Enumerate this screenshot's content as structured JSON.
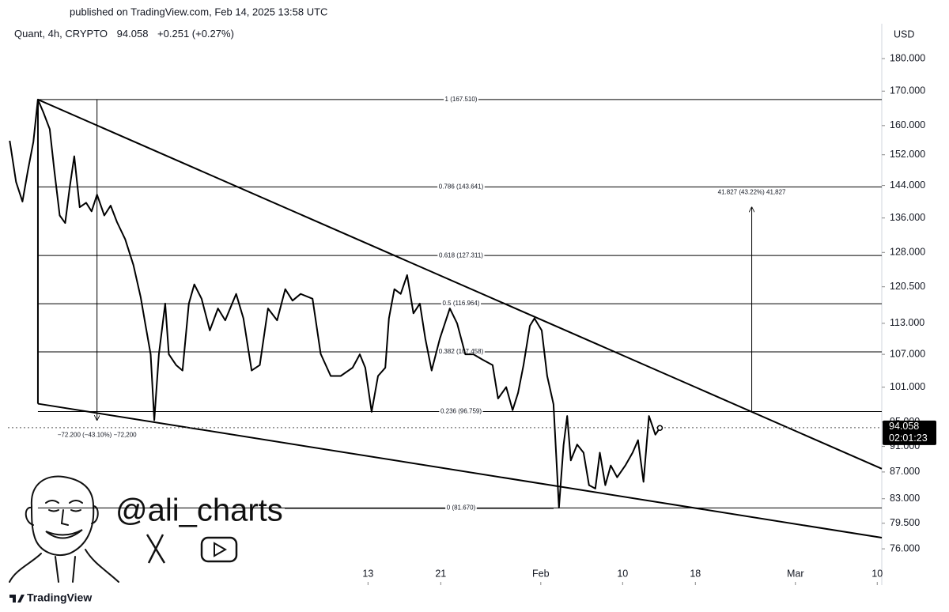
{
  "header": {
    "published": "published on TradingView.com, Feb 14, 2025 13:58 UTC"
  },
  "chart_data": {
    "type": "line",
    "symbol": "Quant, 4h, CRYPTO",
    "last_price": 94.058,
    "change": "+0.251 (+0.27%)",
    "countdown": "02:01:23",
    "currency": "USD",
    "log_scale": true,
    "x": [
      -26.4,
      -25.7,
      -25.0,
      -24.4,
      -23.8,
      -23.3,
      -22.7,
      -22.0,
      -21.5,
      -20.9,
      -20.3,
      -19.8,
      -19.3,
      -18.7,
      -18.0,
      -17.4,
      -16.8,
      -16.0,
      -15.3,
      -14.6,
      -13.7,
      -12.8,
      -12.0,
      -11.5,
      -10.9,
      -10.5,
      -10.0,
      -9.3,
      -8.9,
      -8.1,
      -7.4,
      -6.7,
      -6.1,
      -5.3,
      -4.4,
      -3.5,
      -2.7,
      -1.5,
      -0.7,
      0.2,
      1.1,
      2.0,
      3.0,
      3.9,
      4.7,
      5.6,
      6.9,
      7.8,
      8.9,
      10.0,
      11.3,
      12.1,
      12.7,
      13.4,
      14.1,
      14.9,
      15.3,
      15.9,
      16.6,
      17.3,
      18.0,
      18.7,
      19.3,
      20.0,
      20.9,
      22.0,
      22.8,
      23.7,
      24.6,
      25.6,
      26.7,
      27.3,
      28.2,
      28.9,
      29.5,
      30.1,
      30.8,
      31.3,
      32.1,
      32.7,
      33.4,
      34.0,
      34.5,
      34.9,
      35.3,
      36.0,
      36.7,
      37.3,
      38.0,
      38.5,
      39.1,
      39.7,
      40.4,
      41.3,
      42.1,
      42.7,
      43.3,
      43.9,
      44.6,
      45.1
    ],
    "color": "#000000",
    "values": [
      155.8,
      144.9,
      140,
      147.9,
      155.5,
      167.5,
      163.8,
      159,
      148,
      136.6,
      134.8,
      143.6,
      151.6,
      138.6,
      139.7,
      137.6,
      141.7,
      136.6,
      139,
      135,
      131,
      125.2,
      118.3,
      113,
      107,
      95.3,
      107,
      117,
      107,
      105,
      104,
      117,
      121,
      118,
      111.6,
      116,
      113.6,
      119,
      114,
      104,
      105,
      116,
      113.6,
      120,
      117.6,
      119,
      118,
      107.1,
      103,
      103,
      104.5,
      107,
      104.5,
      96.7,
      103,
      104.5,
      114,
      120,
      119,
      123,
      115,
      117,
      110,
      104,
      110,
      116,
      113,
      107,
      107,
      106,
      105,
      99,
      101,
      97,
      100,
      105,
      112.5,
      114,
      111.6,
      103,
      98,
      81.7,
      91.2,
      96,
      88.8,
      91.3,
      90,
      85,
      84.5,
      90,
      85,
      88,
      86.2,
      88,
      90,
      92,
      85.5,
      96,
      92.9,
      94
    ],
    "xlim": [
      -26.6,
      69.5
    ],
    "ylim": [
      71.3,
      191.4
    ],
    "xticks": [
      13,
      21,
      {
        "value": 32,
        "label": "Feb"
      },
      {
        "value": 41,
        "label": "10"
      },
      {
        "value": 49,
        "label": "18"
      },
      {
        "value": 60,
        "label": "Mar"
      },
      {
        "value": 69,
        "label": "10"
      }
    ],
    "yticks": [
      {
        "value": 76,
        "label": "76.000"
      },
      {
        "value": 79.5,
        "label": "79.500"
      },
      {
        "value": 83,
        "label": "83.000"
      },
      {
        "value": 87,
        "label": "87.000"
      },
      {
        "value": 91,
        "label": "91.000"
      },
      {
        "value": 95,
        "label": "95.000"
      },
      {
        "value": 101,
        "label": "101.000"
      },
      {
        "value": 107,
        "label": "107.000"
      },
      {
        "value": 113,
        "label": "113.000"
      },
      {
        "value": 120.5,
        "label": "120.500"
      },
      {
        "value": 128,
        "label": "128.000"
      },
      {
        "value": 136,
        "label": "136.000"
      },
      {
        "value": 144,
        "label": "144.000"
      },
      {
        "value": 152,
        "label": "152.000"
      },
      {
        "value": 160,
        "label": "160.000"
      },
      {
        "value": 170,
        "label": "170.000"
      },
      {
        "value": 180,
        "label": "180.000"
      }
    ],
    "fib_levels": [
      {
        "label": "1 (167.510)",
        "value": 167.51
      },
      {
        "label": "0.786 (143.641)",
        "value": 143.641
      },
      {
        "label": "0.618 (127.311)",
        "value": 127.311
      },
      {
        "label": "0.5 (116.964)",
        "value": 116.964
      },
      {
        "label": "0.382 (107.458)",
        "value": 107.458
      },
      {
        "label": "0.236 (96.759)",
        "value": 96.759
      },
      {
        "label": "0 (81.670)",
        "value": 81.67
      }
    ],
    "trendlines": [
      {
        "x": [
          -23.3,
          69.5
        ],
        "y": [
          167.5,
          87.5
        ]
      },
      {
        "x": [
          -23.3,
          69.5
        ],
        "y": [
          98.1,
          77.5
        ]
      }
    ],
    "measures": [
      {
        "label": "−72.200 (−43.10%) −72,200",
        "x": -16.8,
        "from": 167.51,
        "to": 95.31
      },
      {
        "label": "41.827 (43.22%) 41,827",
        "x": 55.2,
        "from": 96.759,
        "to": 138.586
      }
    ]
  },
  "watermark": {
    "handle": "@ali_charts"
  },
  "footer": {
    "brand": "TradingView"
  }
}
